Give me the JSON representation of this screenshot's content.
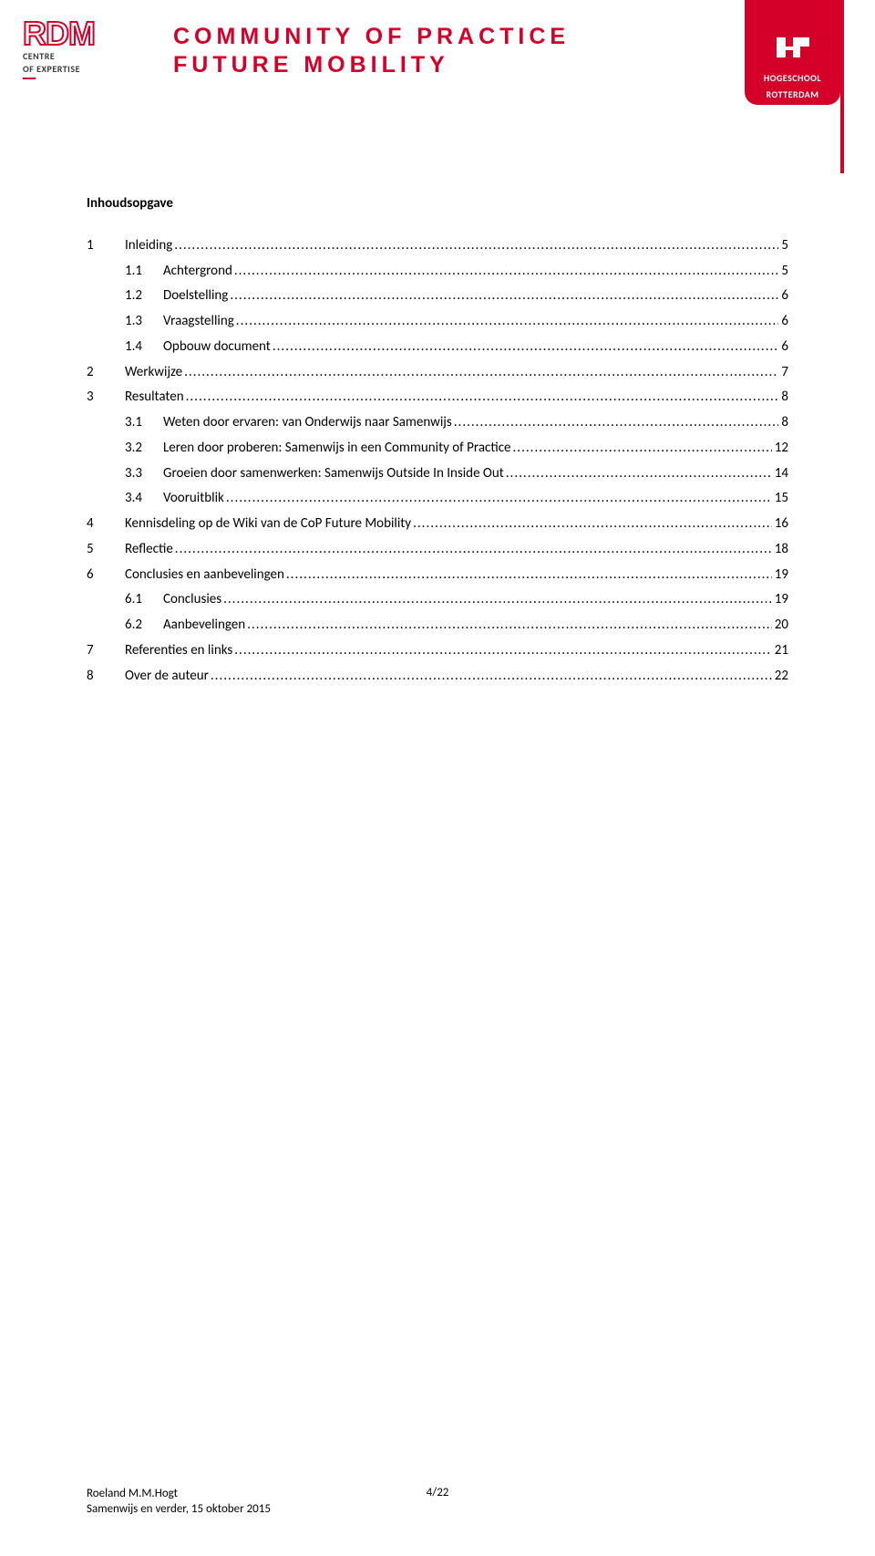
{
  "header": {
    "rdm_logo": "RDM",
    "rdm_sub1": "CENTRE",
    "rdm_sub2": "OF EXPERTISE",
    "title_line1": "COMMUNITY OF PRACTICE",
    "title_line2": "FUTURE MOBILITY",
    "badge_line1": "HOGESCHOOL",
    "badge_line2": "ROTTERDAM"
  },
  "toc": {
    "title": "Inhoudsopgave",
    "entries": [
      {
        "level": 1,
        "num": "1",
        "label": "Inleiding",
        "page": "5"
      },
      {
        "level": 2,
        "num": "1.1",
        "label": "Achtergrond",
        "page": "5"
      },
      {
        "level": 2,
        "num": "1.2",
        "label": "Doelstelling",
        "page": "6"
      },
      {
        "level": 2,
        "num": "1.3",
        "label": "Vraagstelling",
        "page": "6"
      },
      {
        "level": 2,
        "num": "1.4",
        "label": "Opbouw document",
        "page": "6"
      },
      {
        "level": 1,
        "num": "2",
        "label": "Werkwijze",
        "page": "7"
      },
      {
        "level": 1,
        "num": "3",
        "label": "Resultaten",
        "page": "8"
      },
      {
        "level": 2,
        "num": "3.1",
        "label": "Weten door ervaren: van Onderwijs naar Samenwijs",
        "page": "8"
      },
      {
        "level": 2,
        "num": "3.2",
        "label": "Leren door proberen: Samenwijs in een Community of Practice",
        "page": "12"
      },
      {
        "level": 2,
        "num": "3.3",
        "label": "Groeien door samenwerken: Samenwijs Outside In Inside Out",
        "page": "14"
      },
      {
        "level": 2,
        "num": "3.4",
        "label": "Vooruitblik",
        "page": "15"
      },
      {
        "level": 1,
        "num": "4",
        "label": "Kennisdeling op de Wiki van de CoP Future Mobility",
        "page": "16"
      },
      {
        "level": 1,
        "num": "5",
        "label": "Reflectie",
        "page": "18"
      },
      {
        "level": 1,
        "num": "6",
        "label": "Conclusies en aanbevelingen",
        "page": "19"
      },
      {
        "level": 2,
        "num": "6.1",
        "label": "Conclusies",
        "page": "19"
      },
      {
        "level": 2,
        "num": "6.2",
        "label": "Aanbevelingen",
        "page": "20"
      },
      {
        "level": 1,
        "num": "7",
        "label": "Referenties en links",
        "page": "21"
      },
      {
        "level": 1,
        "num": "8",
        "label": "Over de auteur",
        "page": "22"
      }
    ]
  },
  "footer": {
    "author": "Roeland M.M.Hogt",
    "doc_line": "Samenwijs en verder, 15 oktober 2015",
    "page_indicator": "4/22"
  },
  "colors": {
    "brand_red": "#d4002a",
    "text": "#000000",
    "background": "#ffffff"
  }
}
